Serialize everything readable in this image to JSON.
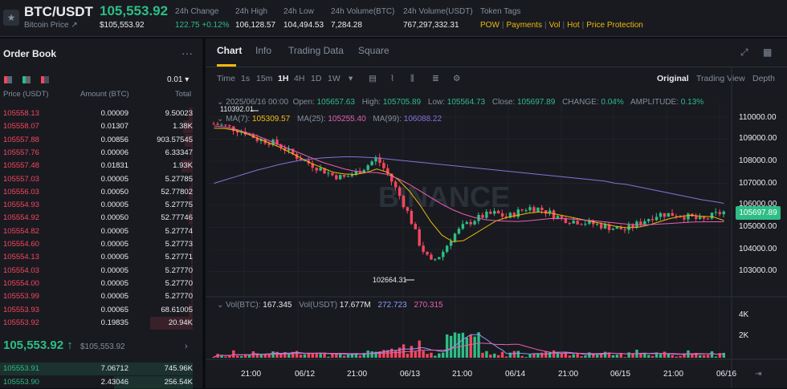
{
  "header": {
    "pair": "BTC/USDT",
    "sub_label": "Bitcoin Price ↗",
    "last_price": "105,553.92",
    "last_price_usd": "$105,553.92",
    "stats": [
      {
        "label": "24h Change",
        "value": "122.75 +0.12%",
        "color": "#2ebd85"
      },
      {
        "label": "24h High",
        "value": "106,128.57",
        "color": "#eaecef"
      },
      {
        "label": "24h Low",
        "value": "104,494.53",
        "color": "#eaecef"
      },
      {
        "label": "24h Volume(BTC)",
        "value": "7,284.28",
        "color": "#eaecef"
      },
      {
        "label": "24h Volume(USDT)",
        "value": "767,297,332.31",
        "color": "#eaecef"
      }
    ],
    "tags_label": "Token Tags",
    "tags": [
      "POW",
      "Payments",
      "Vol",
      "Hot",
      "Price Protection"
    ]
  },
  "order_book": {
    "title": "Order Book",
    "more": "···",
    "precision": "0.01 ▾",
    "headers": {
      "price": "Price (USDT)",
      "amount": "Amount (BTC)",
      "total": "Total"
    },
    "asks": [
      {
        "price": "105558.13",
        "amount": "0.00009",
        "total": "9.50023",
        "depth": 0.02
      },
      {
        "price": "105558.07",
        "amount": "0.01307",
        "total": "1.38K",
        "depth": 0.05
      },
      {
        "price": "105557.88",
        "amount": "0.00856",
        "total": "903.57545",
        "depth": 0.04
      },
      {
        "price": "105557.76",
        "amount": "0.00006",
        "total": "6.33347",
        "depth": 0.01
      },
      {
        "price": "105557.48",
        "amount": "0.01831",
        "total": "1.93K",
        "depth": 0.06
      },
      {
        "price": "105557.03",
        "amount": "0.00005",
        "total": "5.27785",
        "depth": 0.01
      },
      {
        "price": "105556.03",
        "amount": "0.00050",
        "total": "52.77802",
        "depth": 0.02
      },
      {
        "price": "105554.93",
        "amount": "0.00005",
        "total": "5.27775",
        "depth": 0.01
      },
      {
        "price": "105554.92",
        "amount": "0.00050",
        "total": "52.77746",
        "depth": 0.02
      },
      {
        "price": "105554.82",
        "amount": "0.00005",
        "total": "5.27774",
        "depth": 0.01
      },
      {
        "price": "105554.60",
        "amount": "0.00005",
        "total": "5.27773",
        "depth": 0.01
      },
      {
        "price": "105554.13",
        "amount": "0.00005",
        "total": "5.27771",
        "depth": 0.01
      },
      {
        "price": "105554.03",
        "amount": "0.00005",
        "total": "5.27770",
        "depth": 0.01
      },
      {
        "price": "105554.00",
        "amount": "0.00005",
        "total": "5.27770",
        "depth": 0.01
      },
      {
        "price": "105553.99",
        "amount": "0.00005",
        "total": "5.27770",
        "depth": 0.01
      },
      {
        "price": "105553.93",
        "amount": "0.00065",
        "total": "68.61005",
        "depth": 0.02
      },
      {
        "price": "105553.92",
        "amount": "0.19835",
        "total": "20.94K",
        "depth": 0.22
      }
    ],
    "mid_price": "105,553.92",
    "mid_arrow": "↑",
    "mid_usd": "$105,553.92",
    "mid_more": "›",
    "bids": [
      {
        "price": "105553.91",
        "amount": "7.06712",
        "total": "745.96K",
        "depth": 1.0
      },
      {
        "price": "105553.90",
        "amount": "2.43046",
        "total": "256.54K",
        "depth": 0.4
      }
    ]
  },
  "chart_panel": {
    "tabs": [
      "Chart",
      "Info",
      "Trading Data",
      "Square"
    ],
    "intervals": [
      "Time",
      "1s",
      "15m",
      "1H",
      "4H",
      "1D",
      "1W"
    ],
    "active_interval": "1H",
    "views": [
      "Original",
      "Trading View",
      "Depth"
    ],
    "ohlc": {
      "date": "2025/06/16 00:00",
      "open_label": "Open:",
      "open": "105657.63",
      "high_label": "High:",
      "high": "105705.89",
      "low_label": "Low:",
      "low": "105564.73",
      "close_label": "Close:",
      "close": "105697.89",
      "change_label": "CHANGE:",
      "change": "0.04%",
      "amp_label": "AMPLITUDE:",
      "amp": "0.13%"
    },
    "ma": {
      "ma7_label": "MA(7):",
      "ma7": "105309.57",
      "ma25_label": "MA(25):",
      "ma25": "105255.40",
      "ma99_label": "MA(99):",
      "ma99": "106088.22"
    },
    "vol": {
      "btc_label": "Vol(BTC):",
      "btc": "167.345",
      "usdt_label": "Vol(USDT)",
      "usdt": "17.677M",
      "v1": "272.723",
      "v2": "270.315"
    },
    "current_price_tag": "105697.89",
    "high_marker": "110392.01",
    "low_marker": "102664.31",
    "watermark": "BINANCE",
    "colors": {
      "up": "#2ebd85",
      "down": "#f6465d",
      "ma7": "#f0b90b",
      "ma25": "#e85eb2",
      "ma99": "#8b6fd6",
      "accent": "#f0b90b"
    }
  },
  "chart_data": {
    "type": "candlestick",
    "y_ticks": [
      "110000.00",
      "109000.00",
      "108000.00",
      "107000.00",
      "106000.00",
      "105000.00",
      "104000.00",
      "103000.00"
    ],
    "ylim": [
      102500,
      110500
    ],
    "x_ticks": [
      "21:00",
      "06/12",
      "21:00",
      "06/13",
      "21:00",
      "06/14",
      "21:00",
      "06/15",
      "21:00",
      "06/16"
    ],
    "vol_ticks": [
      "4K",
      "2K"
    ],
    "close_path": [
      109700,
      109600,
      109450,
      109300,
      109000,
      108900,
      108750,
      108400,
      108100,
      107850,
      107600,
      107350,
      107250,
      107450,
      107750,
      108150,
      107450,
      106550,
      105550,
      104200,
      103400,
      103800,
      104600,
      105050,
      105350,
      105550,
      105650,
      105450,
      105700,
      105900,
      105850,
      105650,
      105400,
      105300,
      105250,
      105150,
      105050,
      104950,
      104900,
      105150,
      105400,
      105600,
      105600,
      105550,
      105450,
      105300,
      105550,
      105700
    ],
    "series": [
      {
        "name": "MA(7)",
        "values": [
          109500,
          109480,
          109400,
          109250,
          109050,
          108850,
          108650,
          108400,
          108150,
          107900,
          107700,
          107500,
          107420,
          107400,
          107480,
          107650,
          107500,
          107150,
          106650,
          106000,
          105250,
          104650,
          104350,
          104400,
          104700,
          105000,
          105300,
          105450,
          105550,
          105650,
          105700,
          105650,
          105550,
          105450,
          105350,
          105250,
          105150,
          105050,
          104980,
          105000,
          105100,
          105250,
          105400,
          105500,
          105550,
          105500,
          105480,
          105310
        ]
      },
      {
        "name": "MA(25)",
        "values": [
          109600,
          109550,
          109450,
          109300,
          109150,
          108950,
          108750,
          108550,
          108350,
          108150,
          107950,
          107800,
          107650,
          107550,
          107500,
          107480,
          107400,
          107200,
          106950,
          106650,
          106350,
          106050,
          105800,
          105600,
          105450,
          105350,
          105300,
          105280,
          105270,
          105300,
          105350,
          105400,
          105400,
          105380,
          105340,
          105300,
          105250,
          105200,
          105150,
          105120,
          105120,
          105150,
          105180,
          105210,
          105240,
          105250,
          105255,
          105255
        ]
      },
      {
        "name": "MA(99)",
        "values": [
          107000,
          107150,
          107300,
          107450,
          107600,
          107720,
          107850,
          107950,
          108050,
          108100,
          108150,
          108180,
          108200,
          108200,
          108180,
          108150,
          108100,
          108050,
          108000,
          107950,
          107900,
          107850,
          107800,
          107750,
          107700,
          107650,
          107600,
          107550,
          107500,
          107450,
          107400,
          107350,
          107300,
          107250,
          107200,
          107150,
          107100,
          107000,
          106950,
          106850,
          106750,
          106650,
          106550,
          106450,
          106350,
          106250,
          106180,
          106090
        ]
      }
    ]
  }
}
